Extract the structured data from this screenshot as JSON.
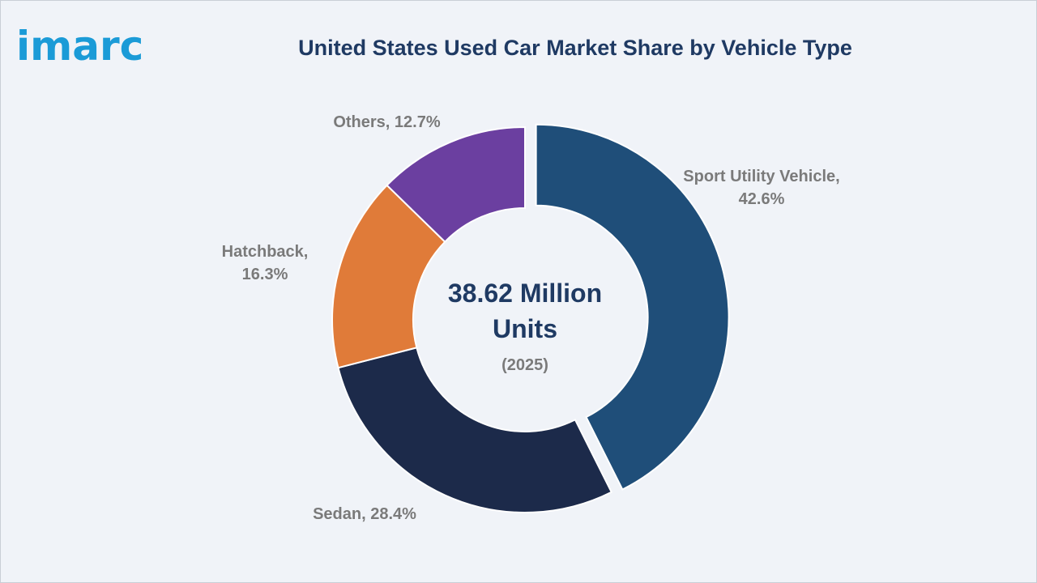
{
  "brand": {
    "logo_text": "imarc",
    "logo_color": "#1b9bd7"
  },
  "chart_data": {
    "type": "pie",
    "title": "United States Used Car Market Share by Vehicle Type",
    "unit": "%",
    "center_text": {
      "value": "38.62 Million Units",
      "year": "(2025)"
    },
    "categories": [
      "Sport Utility Vehicle",
      "Sedan",
      "Hatchback",
      "Others"
    ],
    "values": [
      42.6,
      28.4,
      16.3,
      12.7
    ],
    "labels": [
      "Sport Utility Vehicle, 42.6%",
      "Sedan, 28.4%",
      "Hatchback, 16.3%",
      "Others, 12.7%"
    ],
    "colors": [
      "#1f4e79",
      "#1c2a4a",
      "#e07b39",
      "#6b3fa0"
    ],
    "style": "donut",
    "exploded": [
      "Sport Utility Vehicle"
    ],
    "legend": "none"
  }
}
